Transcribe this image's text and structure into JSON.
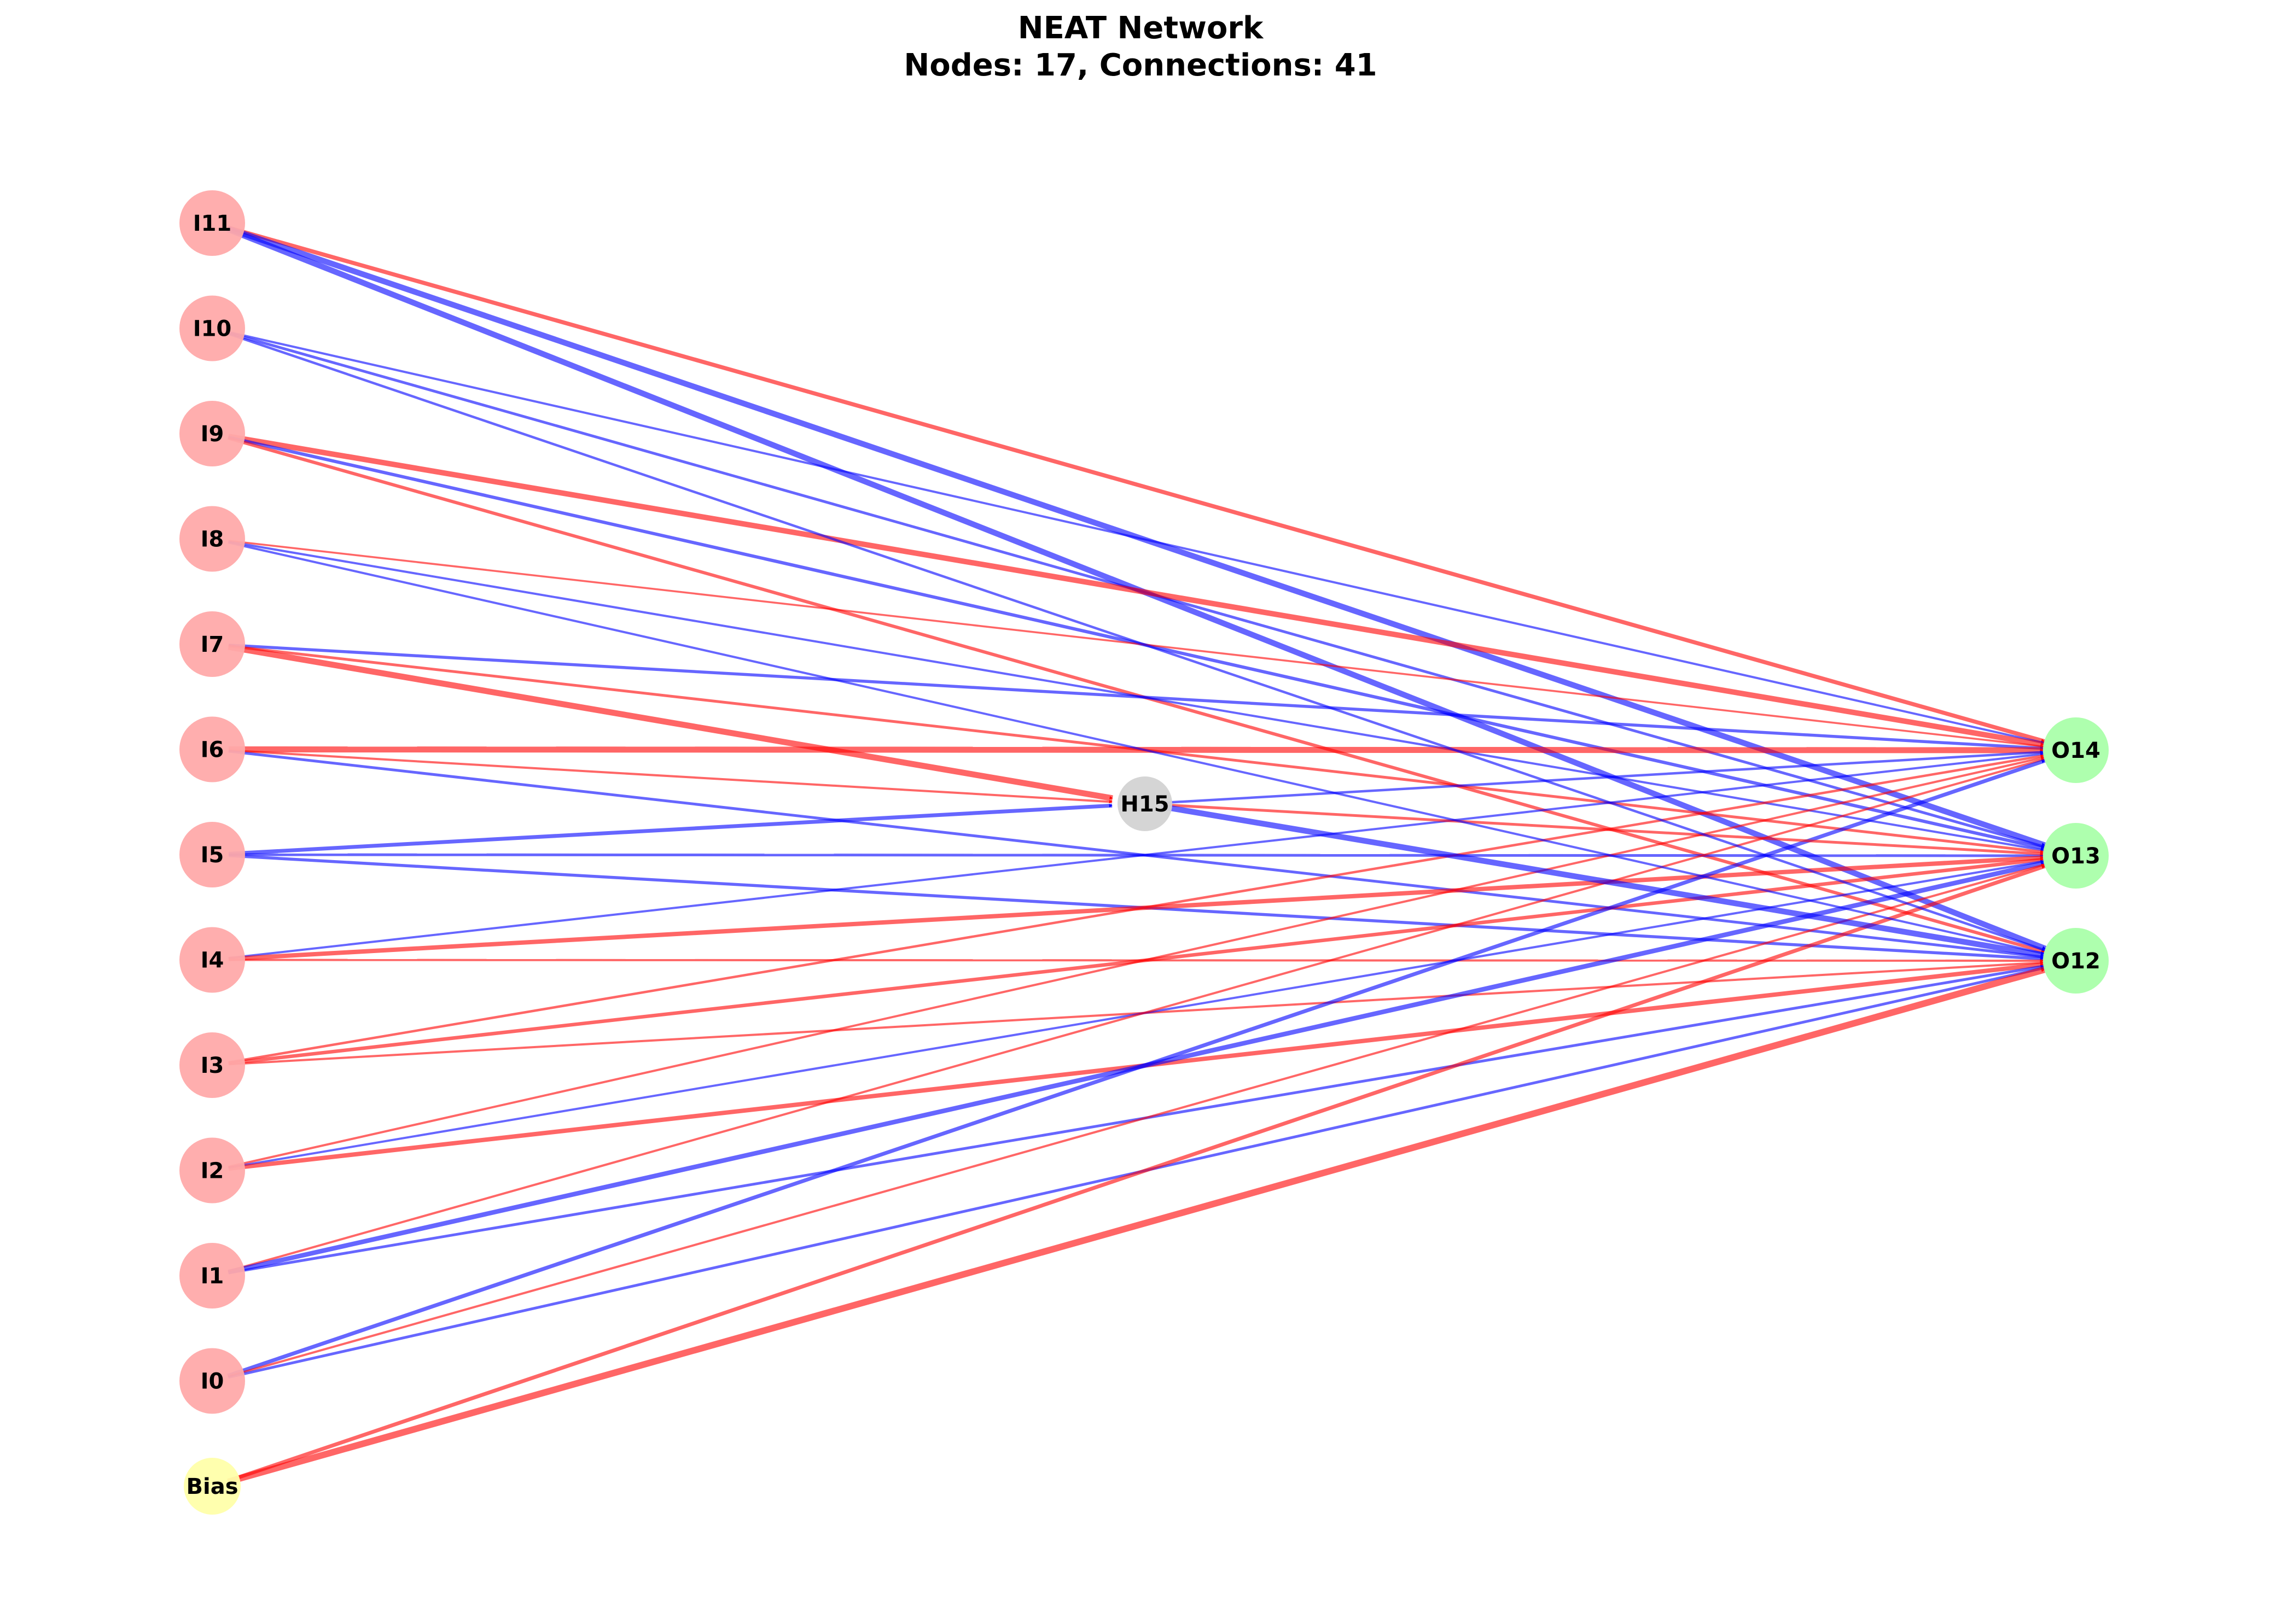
{
  "title": "NEAT Network",
  "subtitle": "Nodes: 17, Connections: 41",
  "colors": {
    "input": "#ffaaaa",
    "bias": "#ffffaa",
    "hidden": "#d3d3d3",
    "output": "#aaffaa",
    "positive_weight": "#ff0000",
    "negative_weight": "#0000ff"
  },
  "nodes": [
    {
      "id": "I11",
      "label": "I11",
      "type": "input"
    },
    {
      "id": "I10",
      "label": "I10",
      "type": "input"
    },
    {
      "id": "I9",
      "label": "I9",
      "type": "input"
    },
    {
      "id": "I8",
      "label": "I8",
      "type": "input"
    },
    {
      "id": "I7",
      "label": "I7",
      "type": "input"
    },
    {
      "id": "I6",
      "label": "I6",
      "type": "input"
    },
    {
      "id": "I5",
      "label": "I5",
      "type": "input"
    },
    {
      "id": "I4",
      "label": "I4",
      "type": "input"
    },
    {
      "id": "I3",
      "label": "I3",
      "type": "input"
    },
    {
      "id": "I2",
      "label": "I2",
      "type": "input"
    },
    {
      "id": "I1",
      "label": "I1",
      "type": "input"
    },
    {
      "id": "I0",
      "label": "I0",
      "type": "input"
    },
    {
      "id": "Bias",
      "label": "Bias",
      "type": "bias"
    },
    {
      "id": "H15",
      "label": "H15",
      "type": "hidden"
    },
    {
      "id": "O14",
      "label": "O14",
      "type": "output"
    },
    {
      "id": "O13",
      "label": "O13",
      "type": "output"
    },
    {
      "id": "O12",
      "label": "O12",
      "type": "output"
    }
  ],
  "connections": [
    {
      "from": "I11",
      "to": "O14",
      "sign": "positive",
      "strength": 0.55
    },
    {
      "from": "I11",
      "to": "O13",
      "sign": "negative",
      "strength": 0.85
    },
    {
      "from": "I11",
      "to": "O12",
      "sign": "negative",
      "strength": 0.85
    },
    {
      "from": "I10",
      "to": "O14",
      "sign": "negative",
      "strength": 0.2
    },
    {
      "from": "I10",
      "to": "O13",
      "sign": "negative",
      "strength": 0.3
    },
    {
      "from": "I9",
      "to": "O14",
      "sign": "positive",
      "strength": 0.8
    },
    {
      "from": "I9",
      "to": "O13",
      "sign": "negative",
      "strength": 0.4
    },
    {
      "from": "I9",
      "to": "O12",
      "sign": "positive",
      "strength": 0.4
    },
    {
      "from": "I8",
      "to": "O14",
      "sign": "positive",
      "strength": 0.15
    },
    {
      "from": "I8",
      "to": "O13",
      "sign": "negative",
      "strength": 0.2
    },
    {
      "from": "I7",
      "to": "H15",
      "sign": "positive",
      "strength": 0.9
    },
    {
      "from": "I7",
      "to": "O14",
      "sign": "negative",
      "strength": 0.35
    },
    {
      "from": "I7",
      "to": "O13",
      "sign": "positive",
      "strength": 0.3
    },
    {
      "from": "I6",
      "to": "O14",
      "sign": "positive",
      "strength": 0.9
    },
    {
      "from": "I6",
      "to": "H15",
      "sign": "positive",
      "strength": 0.2
    },
    {
      "from": "I6",
      "to": "O12",
      "sign": "negative",
      "strength": 0.3
    },
    {
      "from": "I5",
      "to": "H15",
      "sign": "negative",
      "strength": 0.5
    },
    {
      "from": "I5",
      "to": "O13",
      "sign": "negative",
      "strength": 0.3
    },
    {
      "from": "I5",
      "to": "O12",
      "sign": "negative",
      "strength": 0.35
    },
    {
      "from": "I4",
      "to": "O14",
      "sign": "negative",
      "strength": 0.2
    },
    {
      "from": "I4",
      "to": "O13",
      "sign": "positive",
      "strength": 0.6
    },
    {
      "from": "I4",
      "to": "O12",
      "sign": "positive",
      "strength": 0.2
    },
    {
      "from": "I3",
      "to": "O14",
      "sign": "positive",
      "strength": 0.25
    },
    {
      "from": "I3",
      "to": "O13",
      "sign": "positive",
      "strength": 0.45
    },
    {
      "from": "I3",
      "to": "O12",
      "sign": "positive",
      "strength": 0.2
    },
    {
      "from": "I2",
      "to": "O14",
      "sign": "positive",
      "strength": 0.2
    },
    {
      "from": "I2",
      "to": "O13",
      "sign": "negative",
      "strength": 0.2
    },
    {
      "from": "I2",
      "to": "O12",
      "sign": "positive",
      "strength": 0.6
    },
    {
      "from": "I1",
      "to": "O14",
      "sign": "positive",
      "strength": 0.2
    },
    {
      "from": "I1",
      "to": "O13",
      "sign": "negative",
      "strength": 0.65
    },
    {
      "from": "I1",
      "to": "O12",
      "sign": "negative",
      "strength": 0.3
    },
    {
      "from": "I0",
      "to": "O14",
      "sign": "negative",
      "strength": 0.5
    },
    {
      "from": "I0",
      "to": "O13",
      "sign": "positive",
      "strength": 0.2
    },
    {
      "from": "I0",
      "to": "O12",
      "sign": "negative",
      "strength": 0.3
    },
    {
      "from": "Bias",
      "to": "O13",
      "sign": "positive",
      "strength": 0.5
    },
    {
      "from": "Bias",
      "to": "O12",
      "sign": "positive",
      "strength": 1.0
    },
    {
      "from": "H15",
      "to": "O14",
      "sign": "negative",
      "strength": 0.25
    },
    {
      "from": "H15",
      "to": "O13",
      "sign": "positive",
      "strength": 0.3
    },
    {
      "from": "H15",
      "to": "O12",
      "sign": "negative",
      "strength": 0.85
    },
    {
      "from": "I8",
      "to": "O12",
      "sign": "negative",
      "strength": 0.2
    },
    {
      "from": "I10",
      "to": "O12",
      "sign": "negative",
      "strength": 0.25
    }
  ]
}
